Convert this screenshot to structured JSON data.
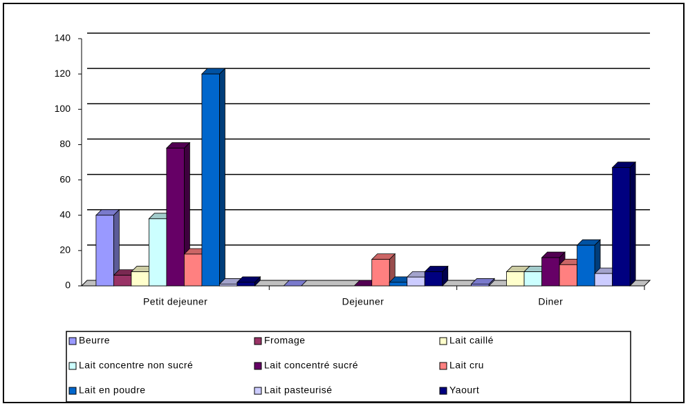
{
  "chart_data": {
    "type": "bar3d",
    "categories": [
      "Petit dejeuner",
      "Dejeuner",
      "Diner"
    ],
    "series": [
      {
        "name": "Beurre",
        "color": "#9999ff",
        "values": [
          40,
          0,
          1
        ]
      },
      {
        "name": "Fromage",
        "color": "#993366",
        "values": [
          6,
          null,
          null
        ]
      },
      {
        "name": "Lait caillé",
        "color": "#ffffcc",
        "values": [
          8,
          null,
          8
        ]
      },
      {
        "name": "Lait concentre non sucré",
        "color": "#ccffff",
        "values": [
          38,
          null,
          8
        ]
      },
      {
        "name": "Lait concentré sucré",
        "color": "#660066",
        "values": [
          78,
          0,
          16
        ]
      },
      {
        "name": "Lait cru",
        "color": "#ff8080",
        "values": [
          18,
          15,
          12
        ]
      },
      {
        "name": "Lait en poudre",
        "color": "#0066cc",
        "values": [
          120,
          2,
          23
        ]
      },
      {
        "name": "Lait pasteurisé",
        "color": "#ccccff",
        "values": [
          1,
          5,
          7
        ]
      },
      {
        "name": "Yaourt",
        "color": "#000080",
        "values": [
          2,
          8,
          67
        ]
      }
    ],
    "ylim": [
      0,
      140
    ],
    "yticks": [
      0,
      20,
      40,
      60,
      80,
      100,
      120,
      140
    ],
    "grid": true
  }
}
